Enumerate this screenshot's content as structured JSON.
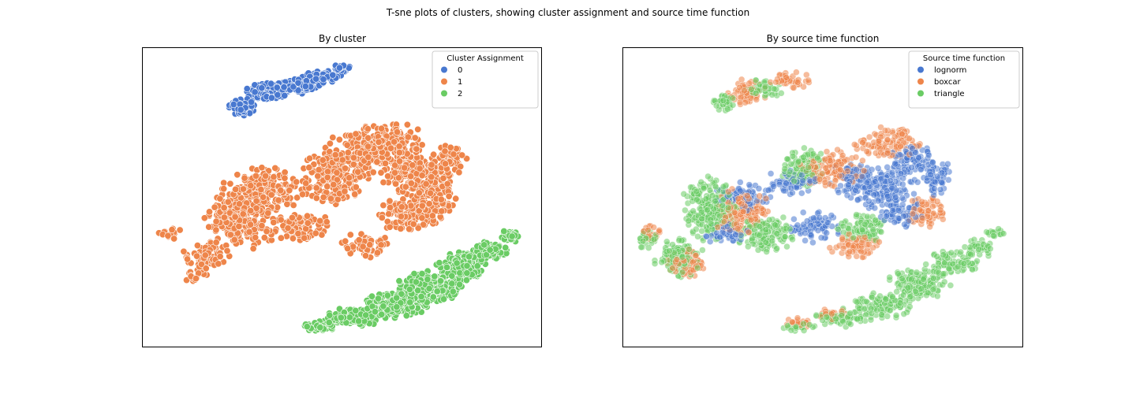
{
  "figure": {
    "suptitle": "T-sne plots of clusters, showing cluster assignment and source time function"
  },
  "chart_data": [
    {
      "type": "scatter",
      "title": "By cluster",
      "xlabel": "",
      "ylabel": "",
      "grid": false,
      "ticks": false,
      "legend": {
        "title": "Cluster Assignment",
        "placement": "top-right",
        "entries": [
          "0",
          "1",
          "2"
        ]
      },
      "colors": {
        "0": "#4878d0",
        "1": "#ee854a",
        "2": "#6acc64"
      },
      "xlim": [
        0,
        100
      ],
      "ylim": [
        0,
        100
      ],
      "series": [
        {
          "name": "0",
          "regions": [
            {
              "x": 25,
              "y": 80,
              "rx": 3.5,
              "ry": 2.8
            },
            {
              "x": 31,
              "y": 85,
              "rx": 5.0,
              "ry": 3.0
            },
            {
              "x": 38,
              "y": 87,
              "rx": 6.0,
              "ry": 2.5
            },
            {
              "x": 45,
              "y": 90,
              "rx": 4.5,
              "ry": 2.0
            },
            {
              "x": 50,
              "y": 93,
              "rx": 2.5,
              "ry": 1.2
            }
          ],
          "count": 380
        },
        {
          "name": "1",
          "regions": [
            {
              "x": 7,
              "y": 38,
              "rx": 3.5,
              "ry": 2.0
            },
            {
              "x": 16,
              "y": 30,
              "rx": 6.0,
              "ry": 5.0
            },
            {
              "x": 13,
              "y": 24,
              "rx": 3.0,
              "ry": 2.5
            },
            {
              "x": 25,
              "y": 43,
              "rx": 9.0,
              "ry": 10.0
            },
            {
              "x": 31,
              "y": 53,
              "rx": 10.0,
              "ry": 7.0
            },
            {
              "x": 40,
              "y": 40,
              "rx": 7.0,
              "ry": 5.0
            },
            {
              "x": 48,
              "y": 57,
              "rx": 8.0,
              "ry": 9.0
            },
            {
              "x": 55,
              "y": 65,
              "rx": 9.0,
              "ry": 7.0
            },
            {
              "x": 62,
              "y": 68,
              "rx": 9.0,
              "ry": 7.0
            },
            {
              "x": 68,
              "y": 58,
              "rx": 8.0,
              "ry": 8.0
            },
            {
              "x": 73,
              "y": 50,
              "rx": 5.0,
              "ry": 8.0
            },
            {
              "x": 77,
              "y": 62,
              "rx": 4.0,
              "ry": 6.0
            },
            {
              "x": 56,
              "y": 34,
              "rx": 6.0,
              "ry": 4.0
            },
            {
              "x": 66,
              "y": 44,
              "rx": 7.0,
              "ry": 6.0
            }
          ],
          "count": 1600
        },
        {
          "name": "2",
          "regions": [
            {
              "x": 44,
              "y": 7,
              "rx": 4.5,
              "ry": 1.8
            },
            {
              "x": 53,
              "y": 10,
              "rx": 7.0,
              "ry": 3.0
            },
            {
              "x": 63,
              "y": 14,
              "rx": 8.0,
              "ry": 4.0
            },
            {
              "x": 72,
              "y": 20,
              "rx": 8.0,
              "ry": 5.0
            },
            {
              "x": 80,
              "y": 27,
              "rx": 6.0,
              "ry": 4.5
            },
            {
              "x": 87,
              "y": 32,
              "rx": 4.0,
              "ry": 3.0
            },
            {
              "x": 92,
              "y": 37,
              "rx": 2.5,
              "ry": 2.0
            }
          ],
          "count": 950
        }
      ]
    },
    {
      "type": "scatter",
      "title": "By source time function",
      "xlabel": "",
      "ylabel": "",
      "grid": false,
      "ticks": false,
      "legend": {
        "title": "Source time function",
        "placement": "top-right",
        "entries": [
          "lognorm",
          "boxcar",
          "triangle"
        ]
      },
      "colors": {
        "lognorm": "#4878d0",
        "boxcar": "#ee854a",
        "triangle": "#6acc64"
      },
      "xlim": [
        0,
        100
      ],
      "ylim": [
        0,
        100
      ],
      "series": [
        {
          "name": "lognorm",
          "regions": [
            {
              "x": 30,
              "y": 50,
              "rx": 7.0,
              "ry": 5.0
            },
            {
              "x": 42,
              "y": 55,
              "rx": 6.0,
              "ry": 4.0
            },
            {
              "x": 58,
              "y": 56,
              "rx": 6.0,
              "ry": 6.0
            },
            {
              "x": 66,
              "y": 52,
              "rx": 8.0,
              "ry": 8.0
            },
            {
              "x": 72,
              "y": 62,
              "rx": 6.0,
              "ry": 6.0
            },
            {
              "x": 78,
              "y": 57,
              "rx": 4.0,
              "ry": 6.0
            },
            {
              "x": 70,
              "y": 44,
              "rx": 5.0,
              "ry": 4.0
            },
            {
              "x": 48,
              "y": 40,
              "rx": 6.0,
              "ry": 5.0
            },
            {
              "x": 26,
              "y": 38,
              "rx": 5.0,
              "ry": 4.0
            }
          ],
          "count": 700
        },
        {
          "name": "boxcar",
          "regions": [
            {
              "x": 31,
              "y": 85,
              "rx": 5.0,
              "ry": 4.0
            },
            {
              "x": 42,
              "y": 89,
              "rx": 6.0,
              "ry": 2.5
            },
            {
              "x": 7,
              "y": 38,
              "rx": 3.0,
              "ry": 2.5
            },
            {
              "x": 16,
              "y": 28,
              "rx": 5.0,
              "ry": 5.0
            },
            {
              "x": 30,
              "y": 45,
              "rx": 7.0,
              "ry": 8.0
            },
            {
              "x": 52,
              "y": 60,
              "rx": 8.0,
              "ry": 6.0
            },
            {
              "x": 66,
              "y": 68,
              "rx": 8.0,
              "ry": 5.0
            },
            {
              "x": 76,
              "y": 45,
              "rx": 5.0,
              "ry": 5.0
            },
            {
              "x": 58,
              "y": 34,
              "rx": 6.0,
              "ry": 4.0
            },
            {
              "x": 44,
              "y": 8,
              "rx": 4.0,
              "ry": 2.0
            },
            {
              "x": 53,
              "y": 11,
              "rx": 4.0,
              "ry": 2.0
            }
          ],
          "count": 800
        },
        {
          "name": "triangle",
          "regions": [
            {
              "x": 25,
              "y": 82,
              "rx": 3.5,
              "ry": 3.0
            },
            {
              "x": 35,
              "y": 86,
              "rx": 5.0,
              "ry": 3.0
            },
            {
              "x": 6,
              "y": 36,
              "rx": 3.0,
              "ry": 3.0
            },
            {
              "x": 14,
              "y": 30,
              "rx": 6.0,
              "ry": 6.0
            },
            {
              "x": 22,
              "y": 46,
              "rx": 7.0,
              "ry": 10.0
            },
            {
              "x": 36,
              "y": 38,
              "rx": 7.0,
              "ry": 6.0
            },
            {
              "x": 45,
              "y": 60,
              "rx": 6.0,
              "ry": 6.0
            },
            {
              "x": 60,
              "y": 40,
              "rx": 6.0,
              "ry": 5.0
            },
            {
              "x": 44,
              "y": 7,
              "rx": 4.0,
              "ry": 1.8
            },
            {
              "x": 55,
              "y": 10,
              "rx": 7.0,
              "ry": 3.0
            },
            {
              "x": 65,
              "y": 14,
              "rx": 8.0,
              "ry": 4.0
            },
            {
              "x": 74,
              "y": 21,
              "rx": 8.0,
              "ry": 5.0
            },
            {
              "x": 82,
              "y": 28,
              "rx": 6.0,
              "ry": 4.0
            },
            {
              "x": 89,
              "y": 33,
              "rx": 4.0,
              "ry": 3.0
            },
            {
              "x": 93,
              "y": 38,
              "rx": 2.5,
              "ry": 2.0
            }
          ],
          "count": 1300
        }
      ]
    }
  ]
}
